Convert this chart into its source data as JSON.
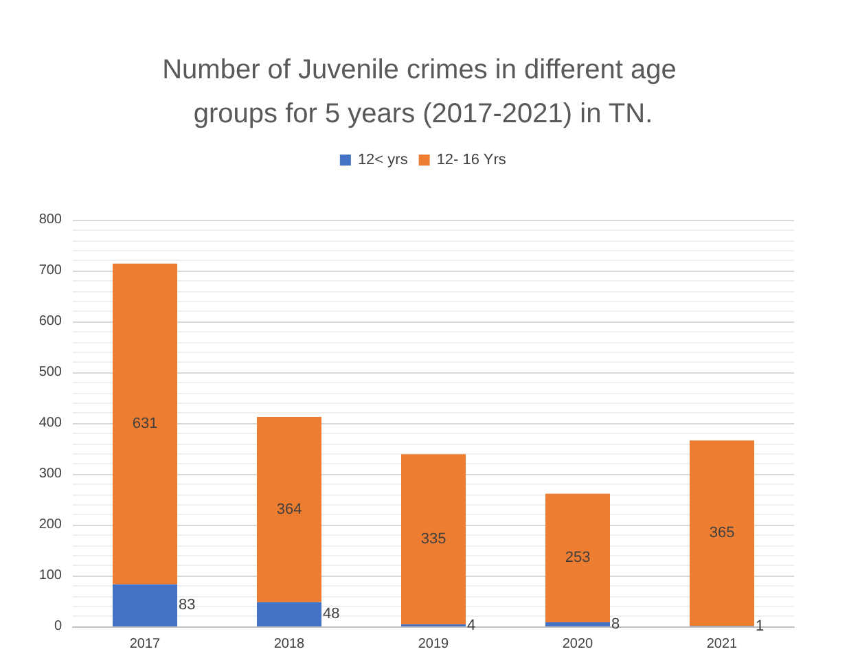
{
  "chart_data": {
    "type": "bar",
    "title": "Number of Juvenile crimes in different age groups for 5 years (2017-2021) in TN.",
    "categories": [
      "2017",
      "2018",
      "2019",
      "2020",
      "2021"
    ],
    "stacked": true,
    "series": [
      {
        "name": "12< yrs",
        "color": "#4472c4",
        "values": [
          83,
          48,
          4,
          8,
          1
        ],
        "value_labels": [
          "83",
          "48",
          "4",
          "8",
          "1"
        ]
      },
      {
        "name": "12- 16 Yrs",
        "color": "#ed7d31",
        "values": [
          631,
          364,
          335,
          253,
          365
        ],
        "value_labels": [
          "631",
          "364",
          "335",
          "253",
          "365"
        ]
      }
    ],
    "ylim": [
      0,
      800
    ],
    "yticks": [
      0,
      100,
      200,
      300,
      400,
      500,
      600,
      700,
      800
    ],
    "grid": "y",
    "legend": "top"
  }
}
